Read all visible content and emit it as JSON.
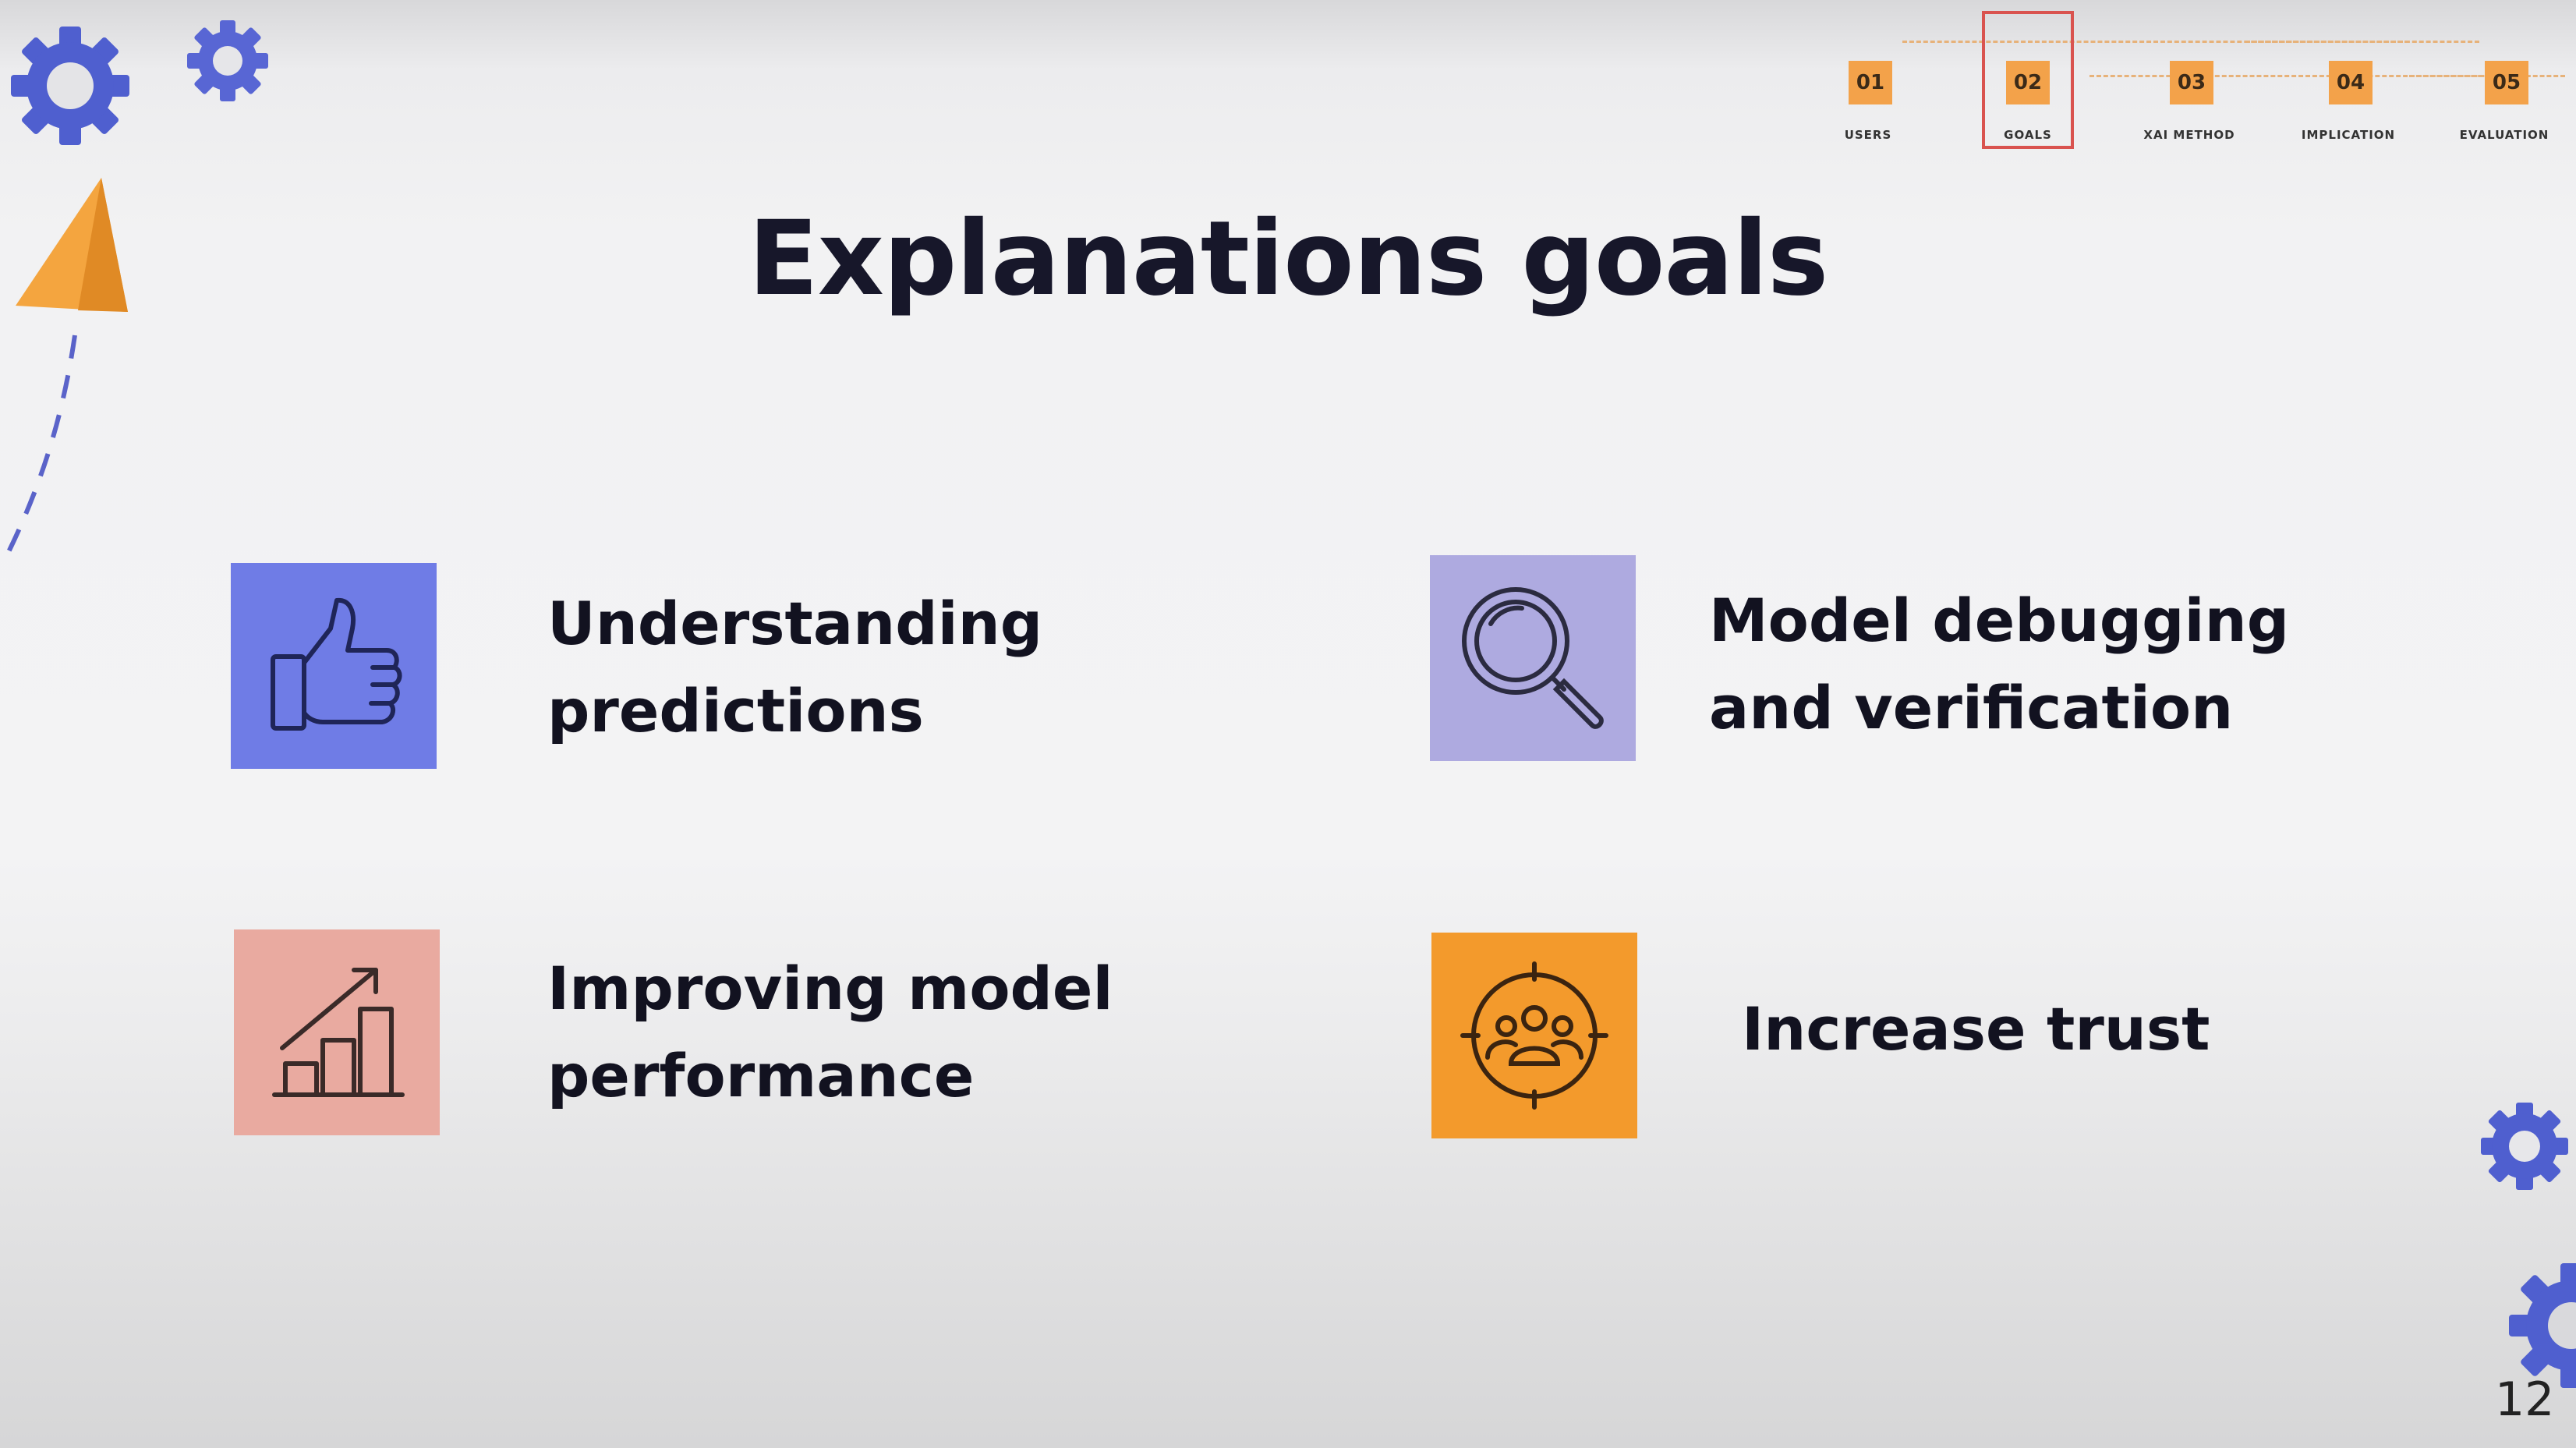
{
  "slide": {
    "title": "Explanations goals",
    "page_number": "12"
  },
  "tracker": {
    "steps": [
      {
        "number": "01",
        "label": "USERS",
        "active": false
      },
      {
        "number": "02",
        "label": "GOALS",
        "active": true
      },
      {
        "number": "03",
        "label": "XAI METHOD",
        "active": false
      },
      {
        "number": "04",
        "label": "IMPLICATION",
        "active": false
      },
      {
        "number": "05",
        "label": "EVALUATION",
        "active": false
      }
    ]
  },
  "goals": [
    {
      "label": "Understanding\npredictions",
      "icon": "thumbs-up-icon",
      "color": "#6f7ce6"
    },
    {
      "label": "Model debugging\nand verification",
      "icon": "magnifier-icon",
      "color": "#aeaae0"
    },
    {
      "label": "Improving model\nperformance",
      "icon": "growth-chart-icon",
      "color": "#e9aaa0"
    },
    {
      "label": "Increase trust",
      "icon": "team-target-icon",
      "color": "#f39a2c"
    }
  ],
  "decor": {
    "gear_color": "#4f5fcf",
    "paper_plane_color": "#f4a53f"
  }
}
